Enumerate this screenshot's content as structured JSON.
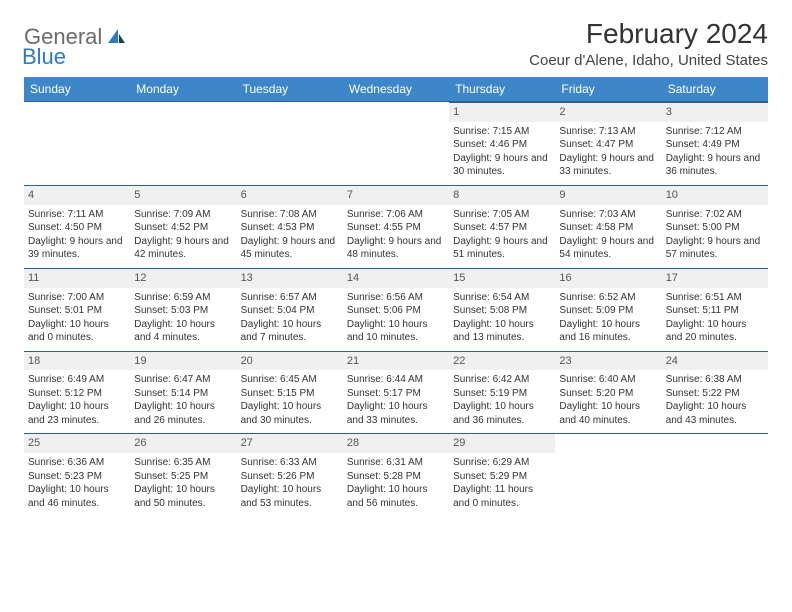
{
  "logo": {
    "general": "General",
    "blue": "Blue"
  },
  "title": "February 2024",
  "location": "Coeur d'Alene, Idaho, United States",
  "colors": {
    "header_bg": "#3d87c9",
    "header_text": "#ffffff",
    "rule": "#2f5f8a",
    "daynum_bg": "#f0f0f0",
    "logo_gray": "#6b6b6b",
    "logo_blue": "#2f7bbf"
  },
  "weekdays": [
    "Sunday",
    "Monday",
    "Tuesday",
    "Wednesday",
    "Thursday",
    "Friday",
    "Saturday"
  ],
  "weeks": [
    [
      null,
      null,
      null,
      null,
      {
        "d": "1",
        "sr": "7:15 AM",
        "ss": "4:46 PM",
        "dl": "9 hours and 30 minutes."
      },
      {
        "d": "2",
        "sr": "7:13 AM",
        "ss": "4:47 PM",
        "dl": "9 hours and 33 minutes."
      },
      {
        "d": "3",
        "sr": "7:12 AM",
        "ss": "4:49 PM",
        "dl": "9 hours and 36 minutes."
      }
    ],
    [
      {
        "d": "4",
        "sr": "7:11 AM",
        "ss": "4:50 PM",
        "dl": "9 hours and 39 minutes."
      },
      {
        "d": "5",
        "sr": "7:09 AM",
        "ss": "4:52 PM",
        "dl": "9 hours and 42 minutes."
      },
      {
        "d": "6",
        "sr": "7:08 AM",
        "ss": "4:53 PM",
        "dl": "9 hours and 45 minutes."
      },
      {
        "d": "7",
        "sr": "7:06 AM",
        "ss": "4:55 PM",
        "dl": "9 hours and 48 minutes."
      },
      {
        "d": "8",
        "sr": "7:05 AM",
        "ss": "4:57 PM",
        "dl": "9 hours and 51 minutes."
      },
      {
        "d": "9",
        "sr": "7:03 AM",
        "ss": "4:58 PM",
        "dl": "9 hours and 54 minutes."
      },
      {
        "d": "10",
        "sr": "7:02 AM",
        "ss": "5:00 PM",
        "dl": "9 hours and 57 minutes."
      }
    ],
    [
      {
        "d": "11",
        "sr": "7:00 AM",
        "ss": "5:01 PM",
        "dl": "10 hours and 0 minutes."
      },
      {
        "d": "12",
        "sr": "6:59 AM",
        "ss": "5:03 PM",
        "dl": "10 hours and 4 minutes."
      },
      {
        "d": "13",
        "sr": "6:57 AM",
        "ss": "5:04 PM",
        "dl": "10 hours and 7 minutes."
      },
      {
        "d": "14",
        "sr": "6:56 AM",
        "ss": "5:06 PM",
        "dl": "10 hours and 10 minutes."
      },
      {
        "d": "15",
        "sr": "6:54 AM",
        "ss": "5:08 PM",
        "dl": "10 hours and 13 minutes."
      },
      {
        "d": "16",
        "sr": "6:52 AM",
        "ss": "5:09 PM",
        "dl": "10 hours and 16 minutes."
      },
      {
        "d": "17",
        "sr": "6:51 AM",
        "ss": "5:11 PM",
        "dl": "10 hours and 20 minutes."
      }
    ],
    [
      {
        "d": "18",
        "sr": "6:49 AM",
        "ss": "5:12 PM",
        "dl": "10 hours and 23 minutes."
      },
      {
        "d": "19",
        "sr": "6:47 AM",
        "ss": "5:14 PM",
        "dl": "10 hours and 26 minutes."
      },
      {
        "d": "20",
        "sr": "6:45 AM",
        "ss": "5:15 PM",
        "dl": "10 hours and 30 minutes."
      },
      {
        "d": "21",
        "sr": "6:44 AM",
        "ss": "5:17 PM",
        "dl": "10 hours and 33 minutes."
      },
      {
        "d": "22",
        "sr": "6:42 AM",
        "ss": "5:19 PM",
        "dl": "10 hours and 36 minutes."
      },
      {
        "d": "23",
        "sr": "6:40 AM",
        "ss": "5:20 PM",
        "dl": "10 hours and 40 minutes."
      },
      {
        "d": "24",
        "sr": "6:38 AM",
        "ss": "5:22 PM",
        "dl": "10 hours and 43 minutes."
      }
    ],
    [
      {
        "d": "25",
        "sr": "6:36 AM",
        "ss": "5:23 PM",
        "dl": "10 hours and 46 minutes."
      },
      {
        "d": "26",
        "sr": "6:35 AM",
        "ss": "5:25 PM",
        "dl": "10 hours and 50 minutes."
      },
      {
        "d": "27",
        "sr": "6:33 AM",
        "ss": "5:26 PM",
        "dl": "10 hours and 53 minutes."
      },
      {
        "d": "28",
        "sr": "6:31 AM",
        "ss": "5:28 PM",
        "dl": "10 hours and 56 minutes."
      },
      {
        "d": "29",
        "sr": "6:29 AM",
        "ss": "5:29 PM",
        "dl": "11 hours and 0 minutes."
      },
      null,
      null
    ]
  ],
  "labels": {
    "sunrise": "Sunrise:",
    "sunset": "Sunset:",
    "daylight": "Daylight:"
  }
}
